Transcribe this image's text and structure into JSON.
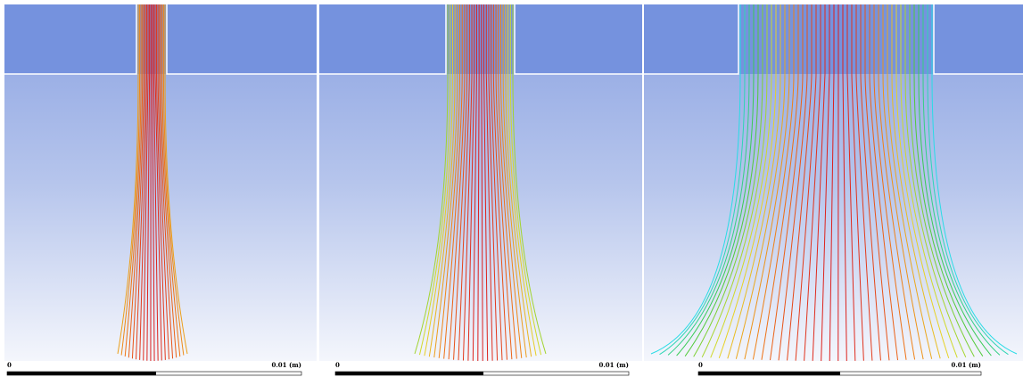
{
  "panels": [
    {
      "scale": {
        "start": "0",
        "end": "0.01 (m)"
      }
    },
    {
      "scale": {
        "start": "0",
        "end": "0.01 (m)"
      }
    },
    {
      "scale": {
        "start": "0",
        "end": "0.01 (m)"
      }
    }
  ]
}
